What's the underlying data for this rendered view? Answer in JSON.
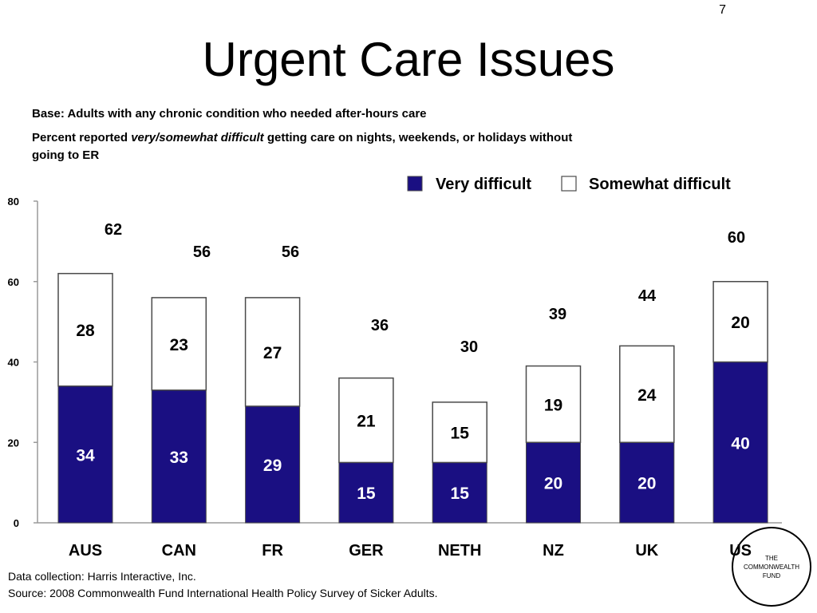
{
  "slide": {
    "page_number": "7",
    "title": "Urgent Care Issues",
    "base_text": "Base: Adults with any chronic condition who needed after-hours care",
    "desc_prefix": "Percent reported ",
    "desc_emphasis": "very/somewhat difficult",
    "desc_suffix": " getting care on nights, weekends, or holidays without going to ER",
    "footer_line1": "Data collection: Harris Interactive, Inc.",
    "footer_line2": "Source: 2008 Commonwealth Fund International Health Policy Survey of Sicker Adults.",
    "logo_text": "THE COMMONWEALTH FUND"
  },
  "chart_data": {
    "type": "bar",
    "stacked": true,
    "categories": [
      "AUS",
      "CAN",
      "FR",
      "GER",
      "NETH",
      "NZ",
      "UK",
      "US"
    ],
    "series": [
      {
        "name": "Very difficult",
        "values": [
          34,
          33,
          29,
          15,
          15,
          20,
          20,
          40
        ],
        "color": "#1a0f82"
      },
      {
        "name": "Somewhat difficult",
        "values": [
          28,
          23,
          27,
          21,
          15,
          19,
          24,
          20
        ],
        "color": "#ffffff"
      }
    ],
    "totals": [
      62,
      56,
      56,
      36,
      30,
      39,
      44,
      60
    ],
    "ylim": [
      0,
      80
    ],
    "yticks": [
      0,
      20,
      40,
      60,
      80
    ],
    "legend_position": "top-right",
    "grid": false
  }
}
